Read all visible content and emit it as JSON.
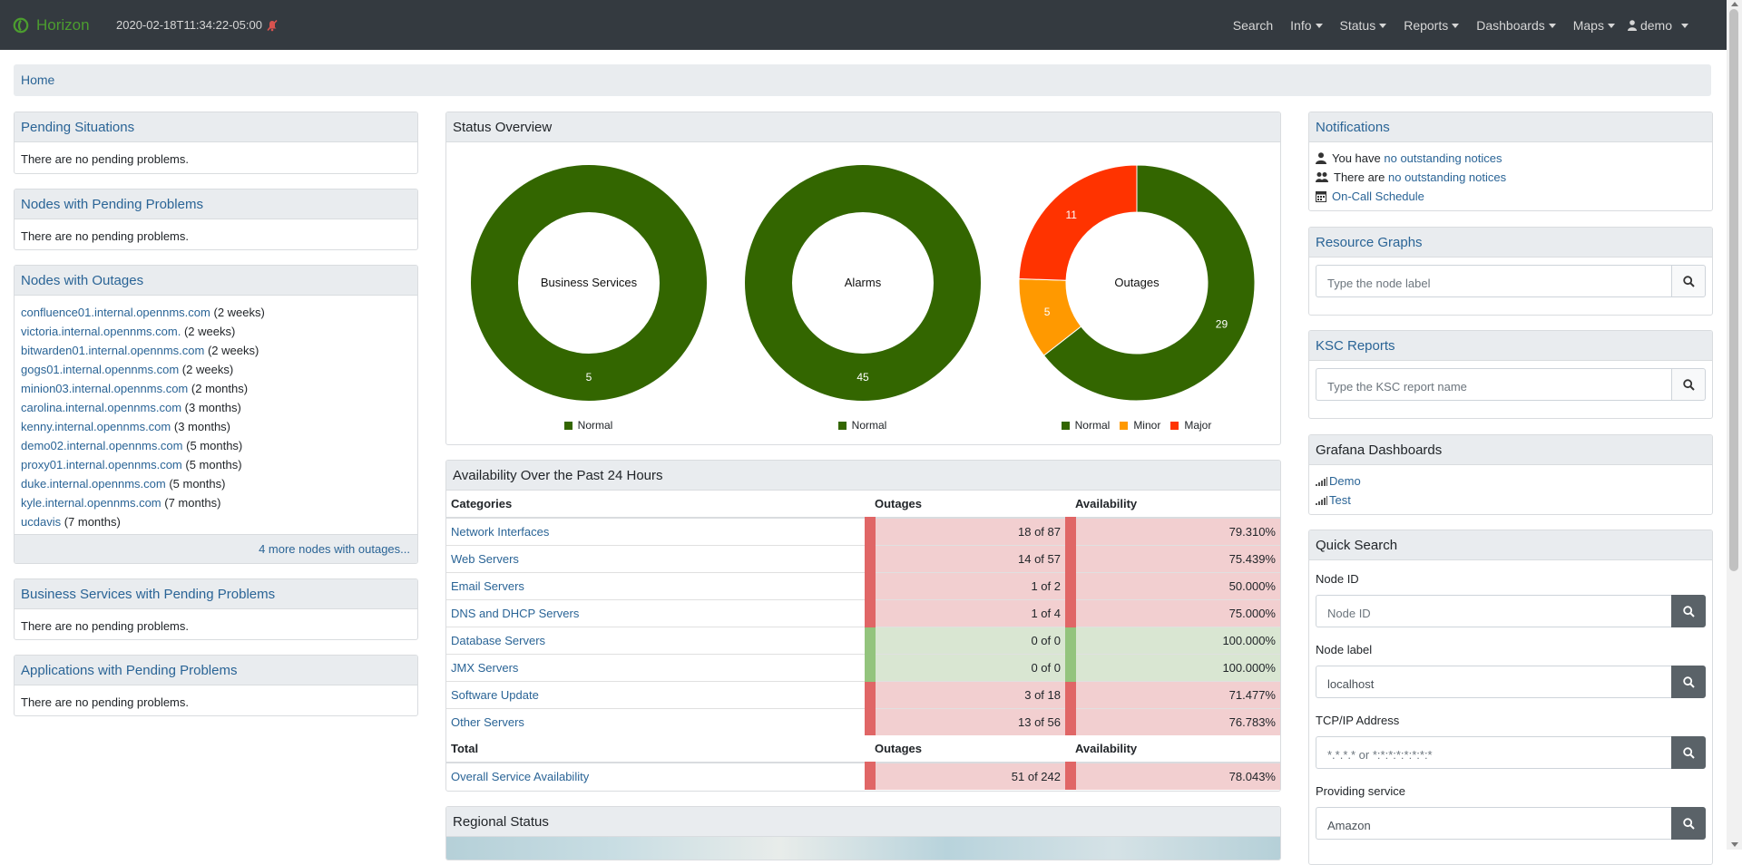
{
  "navbar": {
    "brand": "Horizon",
    "timestamp": "2020-02-18T11:34:22-05:00",
    "items": [
      "Search",
      "Info",
      "Status",
      "Reports",
      "Dashboards",
      "Maps"
    ],
    "user": "demo"
  },
  "breadcrumb": "Home",
  "left": {
    "pending_situations": {
      "title": "Pending Situations",
      "body": "There are no pending problems."
    },
    "nodes_pending": {
      "title": "Nodes with Pending Problems",
      "body": "There are no pending problems."
    },
    "nodes_outages": {
      "title": "Nodes with Outages",
      "items": [
        {
          "host": "confluence01.internal.opennms.com",
          "age": "(2 weeks)"
        },
        {
          "host": "victoria.internal.opennms.com.",
          "age": "(2 weeks)"
        },
        {
          "host": "bitwarden01.internal.opennms.com",
          "age": "(2 weeks)"
        },
        {
          "host": "gogs01.internal.opennms.com",
          "age": "(2 weeks)"
        },
        {
          "host": "minion03.internal.opennms.com",
          "age": "(2 months)"
        },
        {
          "host": "carolina.internal.opennms.com",
          "age": "(3 months)"
        },
        {
          "host": "kenny.internal.opennms.com",
          "age": "(3 months)"
        },
        {
          "host": "demo02.internal.opennms.com",
          "age": "(5 months)"
        },
        {
          "host": "proxy01.internal.opennms.com",
          "age": "(5 months)"
        },
        {
          "host": "duke.internal.opennms.com",
          "age": "(5 months)"
        },
        {
          "host": "kyle.internal.opennms.com",
          "age": "(7 months)"
        },
        {
          "host": "ucdavis",
          "age": "(7 months)"
        }
      ],
      "footer": "4 more nodes with outages..."
    },
    "bs_pending": {
      "title": "Business Services with Pending Problems",
      "body": "There are no pending problems."
    },
    "apps_pending": {
      "title": "Applications with Pending Problems",
      "body": "There are no pending problems."
    }
  },
  "status_overview": {
    "title": "Status Overview",
    "colors": {
      "normal": "#336600",
      "minor": "#ff9900",
      "major": "#ff3300"
    },
    "charts": [
      {
        "label": "Business Services",
        "slices": [
          {
            "name": "Normal",
            "value": 5
          }
        ]
      },
      {
        "label": "Alarms",
        "slices": [
          {
            "name": "Normal",
            "value": 45
          }
        ]
      },
      {
        "label": "Outages",
        "slices": [
          {
            "name": "Normal",
            "value": 29
          },
          {
            "name": "Minor",
            "value": 5
          },
          {
            "name": "Major",
            "value": 11
          }
        ]
      }
    ]
  },
  "availability": {
    "title": "Availability Over the Past 24 Hours",
    "headers": {
      "categories": "Categories",
      "outages": "Outages",
      "availability": "Availability"
    },
    "rows": [
      {
        "name": "Network Interfaces",
        "outages": "18 of 87",
        "avail": "79.310%",
        "status": "red"
      },
      {
        "name": "Web Servers",
        "outages": "14 of 57",
        "avail": "75.439%",
        "status": "red"
      },
      {
        "name": "Email Servers",
        "outages": "1 of 2",
        "avail": "50.000%",
        "status": "red"
      },
      {
        "name": "DNS and DHCP Servers",
        "outages": "1 of 4",
        "avail": "75.000%",
        "status": "red"
      },
      {
        "name": "Database Servers",
        "outages": "0 of 0",
        "avail": "100.000%",
        "status": "green"
      },
      {
        "name": "JMX Servers",
        "outages": "0 of 0",
        "avail": "100.000%",
        "status": "green"
      },
      {
        "name": "Software Update",
        "outages": "3 of 18",
        "avail": "71.477%",
        "status": "red"
      },
      {
        "name": "Other Servers",
        "outages": "13 of 56",
        "avail": "76.783%",
        "status": "red"
      }
    ],
    "total_headers": {
      "total": "Total",
      "outages": "Outages",
      "availability": "Availability"
    },
    "total": {
      "name": "Overall Service Availability",
      "outages": "51 of 242",
      "avail": "78.043%"
    }
  },
  "regional_status": {
    "title": "Regional Status"
  },
  "right": {
    "notifications": {
      "title": "Notifications",
      "line1_prefix": "You have",
      "line1_link": "no outstanding notices",
      "line2_prefix": "There are",
      "line2_link": "no outstanding notices",
      "line3_link": "On-Call Schedule"
    },
    "resource_graphs": {
      "title": "Resource Graphs",
      "placeholder": "Type the node label"
    },
    "ksc_reports": {
      "title": "KSC Reports",
      "placeholder": "Type the KSC report name"
    },
    "grafana": {
      "title": "Grafana Dashboards",
      "items": [
        "Demo",
        "Test"
      ]
    },
    "quick_search": {
      "title": "Quick Search",
      "node_id_label": "Node ID",
      "node_id_placeholder": "Node ID",
      "node_label_label": "Node label",
      "node_label_value": "localhost",
      "ip_label": "TCP/IP Address",
      "ip_placeholder": "*.*.*.* or *:*:*:*:*:*:*:*",
      "service_label": "Providing service",
      "service_value": "Amazon"
    }
  }
}
